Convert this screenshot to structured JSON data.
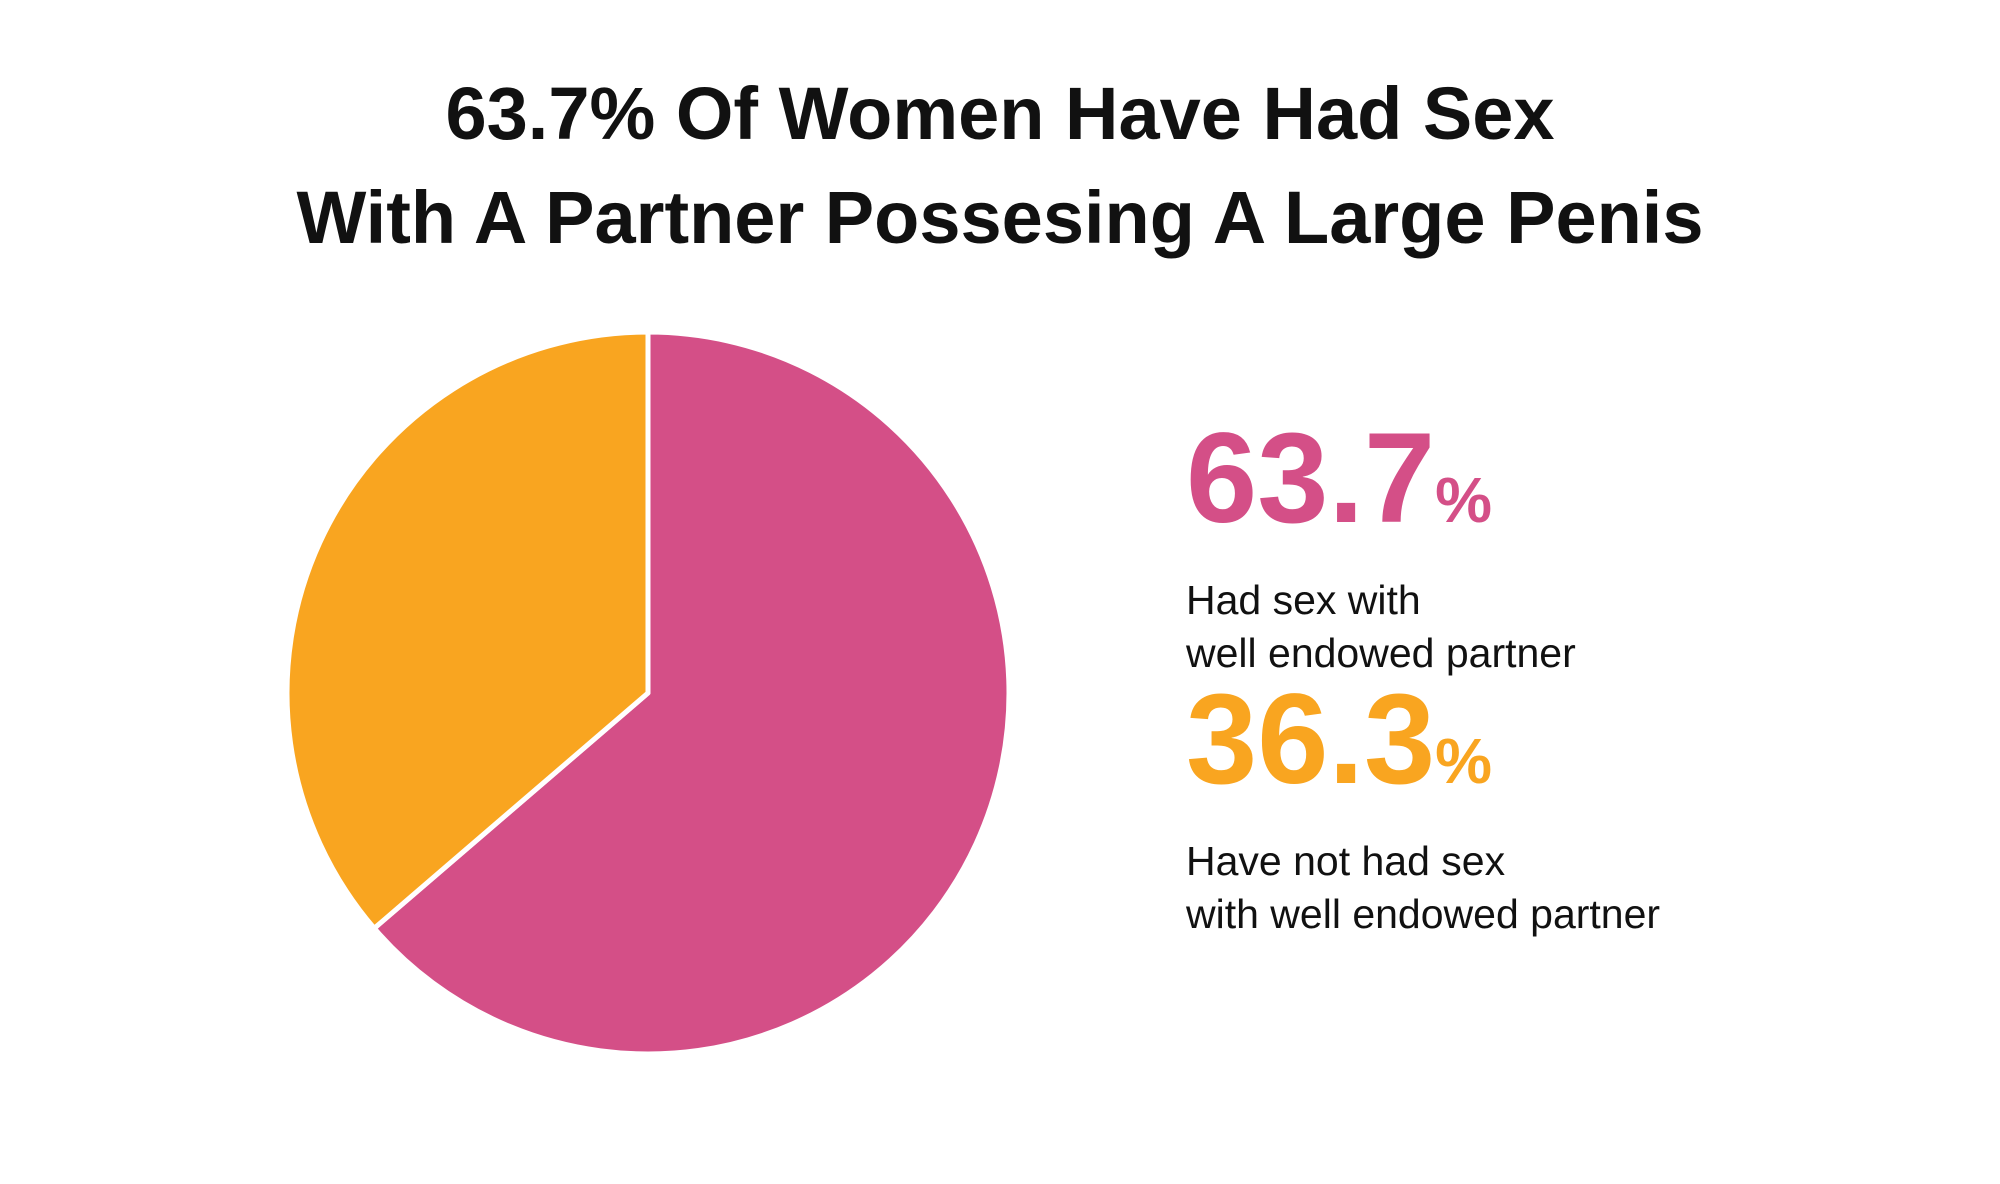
{
  "chart_data": {
    "type": "pie",
    "title": "63.7% Of Women Have Had Sex\nWith A Partner Possesing A Large Penis",
    "categories": [
      "Had sex with\nwell endowed partner",
      "Have not had sex\nwith well endowed partner"
    ],
    "values": [
      63.7,
      36.3
    ],
    "value_labels": [
      "63.7%",
      "36.3%"
    ],
    "colors": [
      "#d44f87",
      "#f9a520"
    ]
  }
}
